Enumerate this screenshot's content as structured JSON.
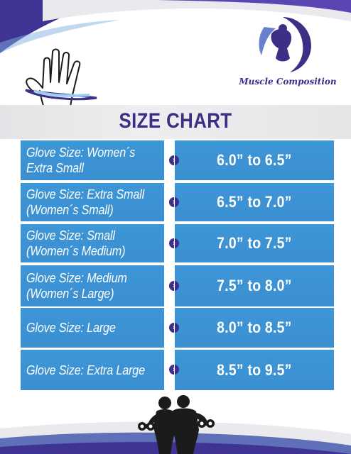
{
  "brand": {
    "name": "Muscle Composition",
    "logo_icon": "bodybuilder-logo-icon"
  },
  "header": {
    "title": "SIZE CHART",
    "hand_icon": "hand-measure-icon"
  },
  "colors": {
    "accent": "#3d2f86",
    "cell": "#3d96d7",
    "swoosh": "#3f3393"
  },
  "rows": [
    {
      "size": "Glove Size: Women´s\nExtra Small",
      "range": "6.0” to 6.5”"
    },
    {
      "size": "Glove Size: Extra Small\n(Women´s Small)",
      "range": "6.5” to 7.0”"
    },
    {
      "size": "Glove Size: Small\n(Women´s Medium)",
      "range": "7.0” to 7.5”"
    },
    {
      "size": "Glove Size: Medium\n(Women´s Large)",
      "range": "7.5” to 8.0”"
    },
    {
      "size": "Glove Size: Large",
      "range": "8.0” to 8.5”"
    },
    {
      "size": "Glove Size: Extra Large",
      "range": "8.5” to 9.5”"
    }
  ],
  "footer": {
    "figure_icon": "fitness-couple-silhouette-icon"
  }
}
